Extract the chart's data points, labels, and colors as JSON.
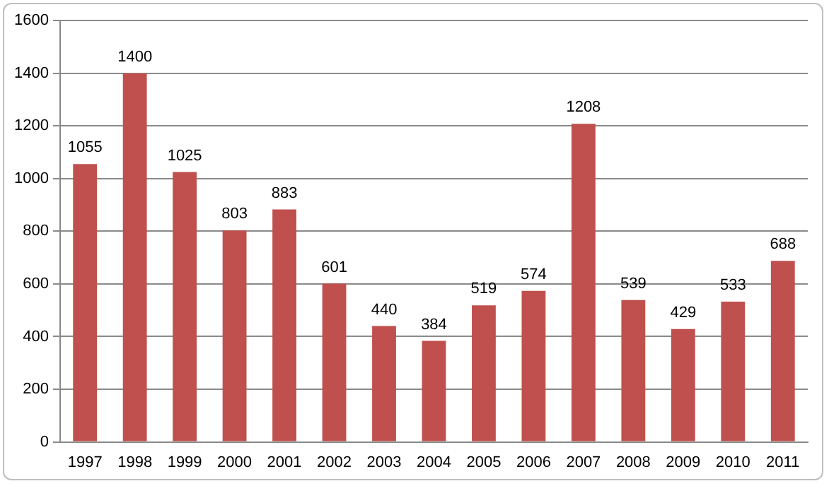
{
  "chart_data": {
    "type": "bar",
    "categories": [
      "1997",
      "1998",
      "1999",
      "2000",
      "2001",
      "2002",
      "2003",
      "2004",
      "2005",
      "2006",
      "2007",
      "2008",
      "2009",
      "2010",
      "2011"
    ],
    "values": [
      1055,
      1400,
      1025,
      803,
      883,
      601,
      440,
      384,
      519,
      574,
      1208,
      539,
      429,
      533,
      688
    ],
    "color": "#c0504d",
    "ylim": [
      0,
      1600
    ],
    "yticks": [
      0,
      200,
      400,
      600,
      800,
      1000,
      1200,
      1400,
      1600
    ],
    "grid": "y",
    "data_labels": true,
    "legend": false
  }
}
